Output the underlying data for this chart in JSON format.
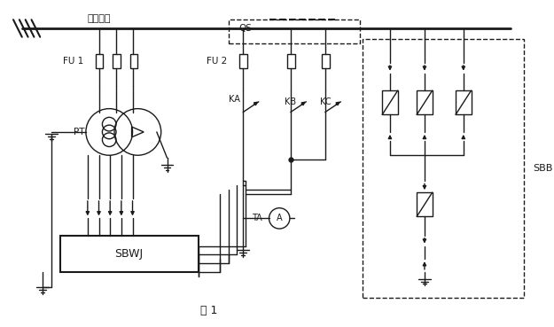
{
  "title": "图 1",
  "label_xitong": "系统母线",
  "label_QS": "QS",
  "label_FU1": "FU 1",
  "label_FU2": "FU 2",
  "label_PT": "PT",
  "label_KA": "KA",
  "label_KB": "KB",
  "label_KC": "KC",
  "label_TA": "TA",
  "label_SBWJ": "SBWJ",
  "label_SBB": "SBB",
  "line_color": "#1a1a1a",
  "bg_color": "#ffffff"
}
